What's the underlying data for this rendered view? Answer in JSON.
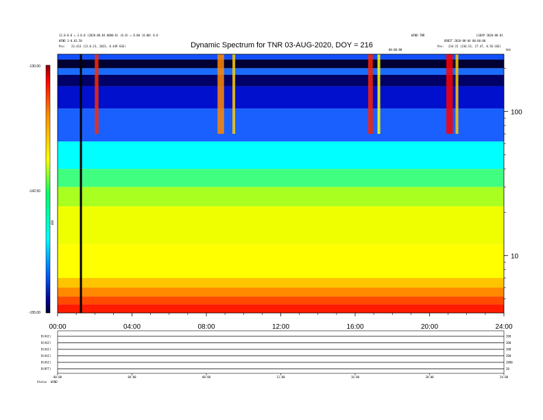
{
  "header": {
    "title": "Dynamic Spectrum for TNR 03-AUG-2020, DOY = 216",
    "left_line1": "12.0.0.0 = 3.0.0 (2020.08.03.0000.0) (6.0) = 0.00 (0.00) 0.0",
    "left_line2": "WIND 3-0.03.50",
    "left_line3_label": "Pos:",
    "left_line3_value": "23.413 (23.0.23, 2023, 8.449 GSE)",
    "right_line1": "WIND TNR",
    "right_line2": "LSDAP 2020-08-01",
    "right_line3": "ORBIT 2020-08-04 00:00:00",
    "right_line4_label": "Pos:",
    "right_line4_value": "234.15 (236.53, 27.47, 8.56 GSE)",
    "mid_marker": "00:00:00",
    "corner_mark": "kHz"
  },
  "colorbar": {
    "top_label": "-130.00",
    "mid_label": "-142.50",
    "bottom_label": "-155.00",
    "unit_label": "dBV",
    "colors": [
      "#8b0000",
      "#ff0000",
      "#ff8c00",
      "#ffff00",
      "#00ffff",
      "#0000ff",
      "#00008b",
      "#000000"
    ]
  },
  "chart_data": {
    "type": "heatmap",
    "title": "Dynamic Spectrum for TNR 03-AUG-2020, DOY = 216",
    "x_ticks": [
      "00:00",
      "04:00",
      "08:00",
      "12:00",
      "16:00",
      "20:00",
      "24:00"
    ],
    "x_range_hours": [
      0,
      24
    ],
    "y_scale": "log",
    "y_range": [
      4,
      250
    ],
    "y_major_ticks": [
      10,
      100
    ],
    "y_minor_ticks": [
      5,
      6,
      7,
      8,
      9,
      20,
      30,
      40,
      50,
      60,
      70,
      80,
      90,
      200
    ],
    "color_range": [
      -155.0,
      -130.0
    ],
    "color_unit": "dBV",
    "data_gap_hour": 1.2
  },
  "bottom_panel": {
    "x_ticks": [
      "00:00",
      "04:00",
      "08:00",
      "12:00",
      "16:00",
      "20:00",
      "24:00"
    ],
    "rows": [
      {
        "label": "B(AGC)",
        "right": "200"
      },
      {
        "label": "B(AGC)",
        "right": "200"
      },
      {
        "label": "B(AGC)",
        "right": "200"
      },
      {
        "label": "B(AGC)",
        "right": "200"
      },
      {
        "label": "B(AGC)",
        "right": "2000"
      },
      {
        "label": "B(RFT)",
        "right": "20"
      }
    ],
    "footer_label": "Status",
    "footer_value": "WIND"
  }
}
